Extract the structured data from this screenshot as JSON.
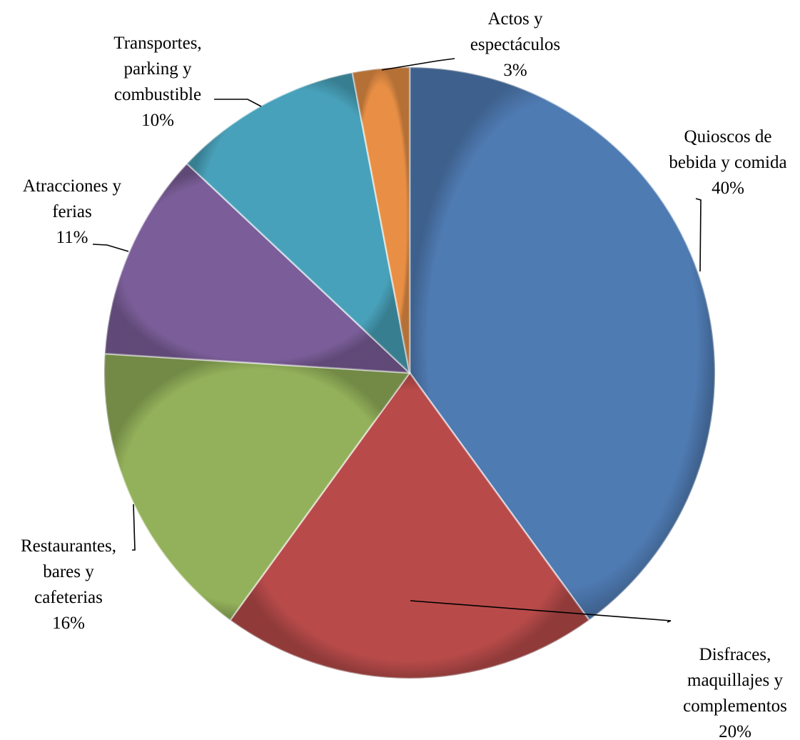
{
  "chart_data": {
    "type": "pie",
    "categories": [
      "Quioscos de bebida y comida",
      "Disfraces, maquillajes y complementos",
      "Restaurantes, bares y cafeterias",
      "Atracciones y ferias",
      "Transportes, parking y combustible",
      "Actos y espectáculos"
    ],
    "values": [
      40,
      20,
      16,
      11,
      10,
      3
    ],
    "unit": "%",
    "title": "",
    "legend": "none",
    "slices": [
      {
        "name": "Quioscos de bebida y comida",
        "value": 40,
        "color": "#4F7BB3",
        "label_lines": [
          "Quioscos de",
          "bebida y comida",
          "40%"
        ]
      },
      {
        "name": "Disfraces, maquillajes y complementos",
        "value": 20,
        "color": "#B84B4A",
        "label_lines": [
          "Disfraces,",
          "maquillajes y",
          "complementos",
          "20%"
        ]
      },
      {
        "name": "Restaurantes, bares y cafeterias",
        "value": 16,
        "color": "#93B15A",
        "label_lines": [
          "Restaurantes,",
          "bares y",
          "cafeterias",
          "16%"
        ]
      },
      {
        "name": "Atracciones y ferias",
        "value": 11,
        "color": "#7B5E99",
        "label_lines": [
          "Atracciones y",
          "ferias",
          "11%"
        ]
      },
      {
        "name": "Transportes, parking y combustible",
        "value": 10,
        "color": "#48A1BA",
        "label_lines": [
          "Transportes,",
          "parking y",
          "combustible",
          "10%"
        ]
      },
      {
        "name": "Actos y espectáculos",
        "value": 3,
        "color": "#E88F45",
        "label_lines": [
          "Actos y",
          "espectáculos",
          "3%"
        ]
      }
    ]
  }
}
